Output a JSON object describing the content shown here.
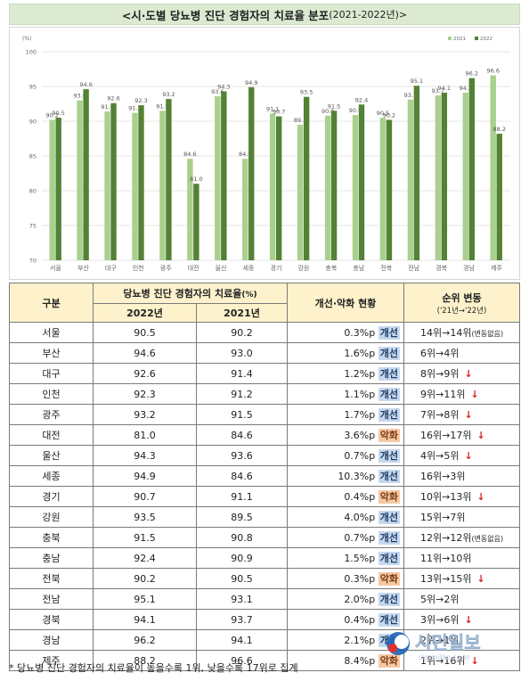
{
  "title": {
    "main": "<시·도별 당뇨병 진단 경험자의 치료율 분포",
    "sub": "(2021-2022년)>"
  },
  "chart_data": {
    "type": "bar",
    "ylabel": "(%)",
    "ylim": [
      70,
      100
    ],
    "yticks": [
      70,
      75,
      80,
      85,
      90,
      95,
      100
    ],
    "categories": [
      "서울",
      "부산",
      "대구",
      "인천",
      "광주",
      "대전",
      "울산",
      "세종",
      "경기",
      "강원",
      "충북",
      "충남",
      "전북",
      "전남",
      "경북",
      "경남",
      "제주"
    ],
    "series": [
      {
        "name": "2021",
        "color": "#a9d08e",
        "values": [
          90.2,
          93.0,
          91.4,
          91.2,
          91.5,
          84.6,
          93.6,
          84.6,
          91.1,
          89.5,
          90.8,
          90.9,
          90.5,
          93.1,
          93.7,
          94.1,
          96.6
        ]
      },
      {
        "name": "2022",
        "color": "#548235",
        "values": [
          90.5,
          94.6,
          92.6,
          92.3,
          93.2,
          81.0,
          94.3,
          94.9,
          90.7,
          93.5,
          91.5,
          92.4,
          90.2,
          95.1,
          94.1,
          96.2,
          88.2
        ]
      }
    ],
    "legend": "top-right",
    "grid": true
  },
  "table": {
    "headers": {
      "region": "구분",
      "rate": "당뇨병 진단 경험자의 치료율",
      "rate_unit": "(%)",
      "y2022": "2022년",
      "y2021": "2021년",
      "change": "개선·악화 현황",
      "rank": "순위 변동",
      "rank_sub": "('21년→'22년)"
    },
    "rows": [
      {
        "region": "서울",
        "y2022": "90.5",
        "y2021": "90.2",
        "diff": "0.3%p",
        "status": "개선",
        "kind": "improve",
        "rank": "14위→14위",
        "note": "(변동없음)",
        "down": false
      },
      {
        "region": "부산",
        "y2022": "94.6",
        "y2021": "93.0",
        "diff": "1.6%p",
        "status": "개선",
        "kind": "improve",
        "rank": "6위→4위",
        "note": "",
        "down": false
      },
      {
        "region": "대구",
        "y2022": "92.6",
        "y2021": "91.4",
        "diff": "1.2%p",
        "status": "개선",
        "kind": "improve",
        "rank": "8위→9위",
        "note": "",
        "down": true
      },
      {
        "region": "인천",
        "y2022": "92.3",
        "y2021": "91.2",
        "diff": "1.1%p",
        "status": "개선",
        "kind": "improve",
        "rank": "9위→11위",
        "note": "",
        "down": true
      },
      {
        "region": "광주",
        "y2022": "93.2",
        "y2021": "91.5",
        "diff": "1.7%p",
        "status": "개선",
        "kind": "improve",
        "rank": "7위→8위",
        "note": "",
        "down": true
      },
      {
        "region": "대전",
        "y2022": "81.0",
        "y2021": "84.6",
        "diff": "3.6%p",
        "status": "악화",
        "kind": "worsen",
        "rank": "16위→17위",
        "note": "",
        "down": true
      },
      {
        "region": "울산",
        "y2022": "94.3",
        "y2021": "93.6",
        "diff": "0.7%p",
        "status": "개선",
        "kind": "improve",
        "rank": "4위→5위",
        "note": "",
        "down": true
      },
      {
        "region": "세종",
        "y2022": "94.9",
        "y2021": "84.6",
        "diff": "10.3%p",
        "status": "개선",
        "kind": "improve",
        "rank": "16위→3위",
        "note": "",
        "down": false
      },
      {
        "region": "경기",
        "y2022": "90.7",
        "y2021": "91.1",
        "diff": "0.4%p",
        "status": "악화",
        "kind": "worsen",
        "rank": "10위→13위",
        "note": "",
        "down": true
      },
      {
        "region": "강원",
        "y2022": "93.5",
        "y2021": "89.5",
        "diff": "4.0%p",
        "status": "개선",
        "kind": "improve",
        "rank": "15위→7위",
        "note": "",
        "down": false
      },
      {
        "region": "충북",
        "y2022": "91.5",
        "y2021": "90.8",
        "diff": "0.7%p",
        "status": "개선",
        "kind": "improve",
        "rank": "12위→12위",
        "note": "(변동없음)",
        "down": false
      },
      {
        "region": "충남",
        "y2022": "92.4",
        "y2021": "90.9",
        "diff": "1.5%p",
        "status": "개선",
        "kind": "improve",
        "rank": "11위→10위",
        "note": "",
        "down": false
      },
      {
        "region": "전북",
        "y2022": "90.2",
        "y2021": "90.5",
        "diff": "0.3%p",
        "status": "악화",
        "kind": "worsen",
        "rank": "13위→15위",
        "note": "",
        "down": true
      },
      {
        "region": "전남",
        "y2022": "95.1",
        "y2021": "93.1",
        "diff": "2.0%p",
        "status": "개선",
        "kind": "improve",
        "rank": "5위→2위",
        "note": "",
        "down": false
      },
      {
        "region": "경북",
        "y2022": "94.1",
        "y2021": "93.7",
        "diff": "0.4%p",
        "status": "개선",
        "kind": "improve",
        "rank": "3위→6위",
        "note": "",
        "down": true
      },
      {
        "region": "경남",
        "y2022": "96.2",
        "y2021": "94.1",
        "diff": "2.1%p",
        "status": "개선",
        "kind": "improve",
        "rank": "2위→1위",
        "note": "",
        "down": false
      },
      {
        "region": "제주",
        "y2022": "88.2",
        "y2021": "96.6",
        "diff": "8.4%p",
        "status": "악화",
        "kind": "worsen",
        "rank": "1위→16위",
        "note": "",
        "down": true
      }
    ],
    "down_arrow": "↓"
  },
  "footnote": "* 당뇨병 진단 경험자의 치료율이 높을수록 1위, 낮을수록 17위로 집계",
  "watermark": {
    "name": "시민일보",
    "url": "siminilbo.co.kr"
  }
}
